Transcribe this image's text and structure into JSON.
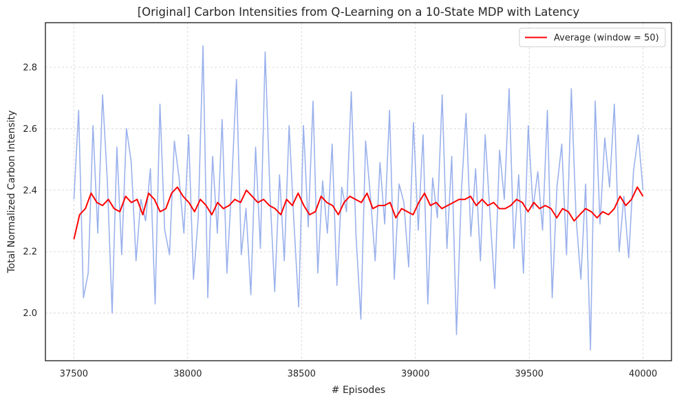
{
  "chart_data": {
    "type": "line",
    "title": "[Original] Carbon Intensities from Q-Learning on a 10-State MDP with Latency",
    "xlabel": "# Episodes",
    "ylabel": "Total Normalized Carbon Intensity",
    "xlim": [
      37375,
      40125
    ],
    "ylim": [
      1.845,
      2.945
    ],
    "x_ticks": [
      37500,
      38000,
      38500,
      39000,
      39500,
      40000
    ],
    "y_ticks": [
      2.0,
      2.2,
      2.4,
      2.6,
      2.8
    ],
    "x_tick_labels": [
      "37500",
      "38000",
      "38500",
      "39000",
      "39500",
      "40000"
    ],
    "y_tick_labels": [
      "2.0",
      "2.2",
      "2.4",
      "2.6",
      "2.8"
    ],
    "grid": true,
    "legend_position": "top-right",
    "series": [
      {
        "name": "",
        "color": "#8fa8ea",
        "x_start": 37500,
        "x_end": 40000,
        "note_values": "raw per-episode series; dense noise between about 1.89 and 2.87 centered near 2.35",
        "values": [
          2.37,
          2.66,
          2.05,
          2.13,
          2.61,
          2.26,
          2.71,
          2.43,
          2.0,
          2.54,
          2.19,
          2.6,
          2.49,
          2.17,
          2.37,
          2.3,
          2.47,
          2.03,
          2.68,
          2.27,
          2.19,
          2.56,
          2.44,
          2.26,
          2.58,
          2.11,
          2.31,
          2.87,
          2.05,
          2.51,
          2.26,
          2.63,
          2.13,
          2.42,
          2.76,
          2.19,
          2.34,
          2.06,
          2.54,
          2.21,
          2.85,
          2.39,
          2.07,
          2.45,
          2.17,
          2.61,
          2.3,
          2.02,
          2.61,
          2.28,
          2.69,
          2.13,
          2.43,
          2.26,
          2.55,
          2.09,
          2.41,
          2.33,
          2.72,
          2.25,
          1.98,
          2.56,
          2.38,
          2.17,
          2.49,
          2.29,
          2.66,
          2.11,
          2.42,
          2.36,
          2.15,
          2.62,
          2.27,
          2.58,
          2.03,
          2.44,
          2.31,
          2.71,
          2.21,
          2.51,
          1.93,
          2.39,
          2.65,
          2.25,
          2.47,
          2.17,
          2.58,
          2.32,
          2.08,
          2.53,
          2.37,
          2.73,
          2.21,
          2.45,
          2.13,
          2.61,
          2.34,
          2.46,
          2.27,
          2.66,
          2.05,
          2.41,
          2.55,
          2.19,
          2.73,
          2.31,
          2.11,
          2.42,
          1.88,
          2.69,
          2.29,
          2.57,
          2.41,
          2.68,
          2.2,
          2.38,
          2.18,
          2.46,
          2.58,
          2.4
        ]
      },
      {
        "name": "Average (window = 50)",
        "color": "#ff0000",
        "x_start": 37500,
        "x_end": 40000,
        "values": [
          2.24,
          2.32,
          2.34,
          2.39,
          2.36,
          2.35,
          2.37,
          2.34,
          2.33,
          2.38,
          2.36,
          2.37,
          2.32,
          2.39,
          2.37,
          2.33,
          2.34,
          2.39,
          2.41,
          2.38,
          2.36,
          2.33,
          2.37,
          2.35,
          2.32,
          2.36,
          2.34,
          2.35,
          2.37,
          2.36,
          2.4,
          2.38,
          2.36,
          2.37,
          2.35,
          2.34,
          2.32,
          2.37,
          2.35,
          2.39,
          2.35,
          2.32,
          2.33,
          2.38,
          2.36,
          2.35,
          2.32,
          2.36,
          2.38,
          2.37,
          2.36,
          2.39,
          2.34,
          2.35,
          2.35,
          2.36,
          2.31,
          2.34,
          2.33,
          2.32,
          2.36,
          2.39,
          2.35,
          2.36,
          2.34,
          2.35,
          2.36,
          2.37,
          2.37,
          2.38,
          2.35,
          2.37,
          2.35,
          2.36,
          2.34,
          2.34,
          2.35,
          2.37,
          2.36,
          2.33,
          2.36,
          2.34,
          2.35,
          2.34,
          2.31,
          2.34,
          2.33,
          2.3,
          2.32,
          2.34,
          2.33,
          2.31,
          2.33,
          2.32,
          2.34,
          2.38,
          2.35,
          2.37,
          2.41,
          2.38
        ]
      }
    ]
  }
}
